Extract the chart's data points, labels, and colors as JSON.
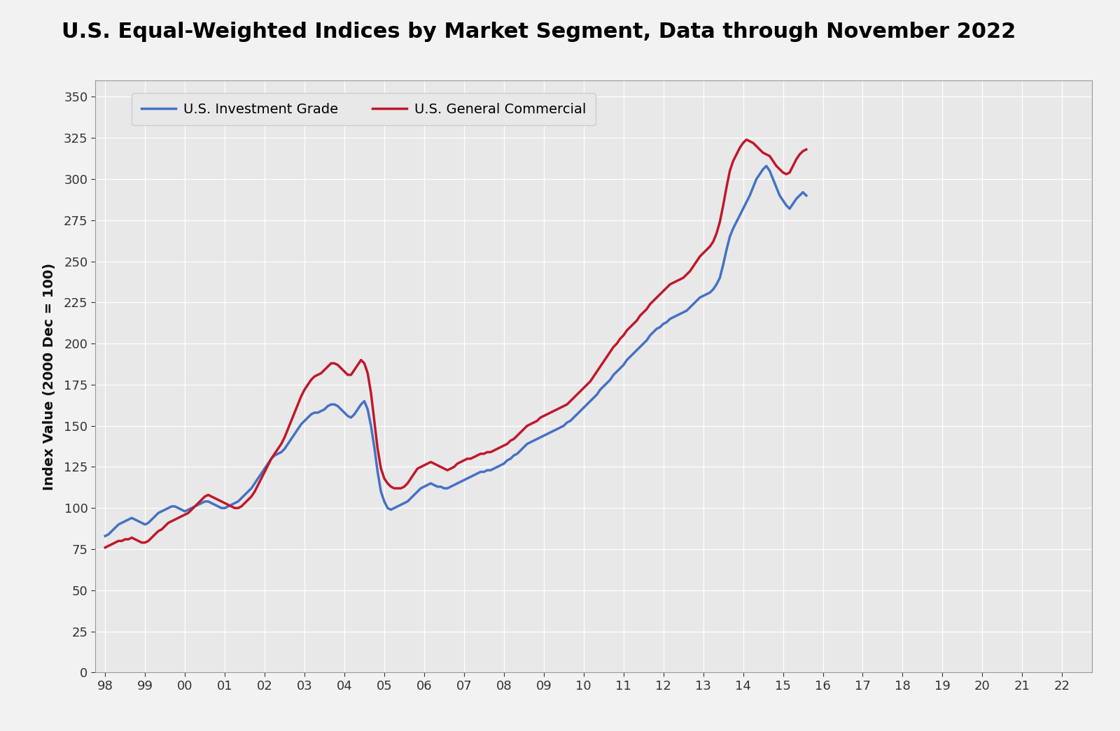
{
  "title": "U.S. Equal-Weighted Indices by Market Segment, Data through November 2022",
  "ylabel": "Index Value (2000 Dec = 100)",
  "ylim": [
    0,
    360
  ],
  "yticks": [
    0,
    25,
    50,
    75,
    100,
    125,
    150,
    175,
    200,
    225,
    250,
    275,
    300,
    325,
    350
  ],
  "xtick_labels": [
    "98",
    "99",
    "00",
    "01",
    "02",
    "03",
    "04",
    "05",
    "06",
    "07",
    "08",
    "09",
    "10",
    "11",
    "12",
    "13",
    "14",
    "15",
    "16",
    "17",
    "18",
    "19",
    "20",
    "21",
    "22"
  ],
  "line_ig_color": "#4472C4",
  "line_gc_color": "#C0182A",
  "line_width": 2.5,
  "legend_ig": "U.S. Investment Grade",
  "legend_gc": "U.S. General Commercial",
  "fig_bg_color": "#F2F2F2",
  "plot_bg_color": "#E8E8E8",
  "title_fontsize": 22,
  "axis_fontsize": 14,
  "tick_fontsize": 13,
  "legend_fontsize": 14,
  "ig_values": [
    83,
    84,
    86,
    88,
    90,
    91,
    92,
    93,
    94,
    93,
    92,
    91,
    90,
    91,
    93,
    95,
    97,
    98,
    99,
    100,
    101,
    101,
    100,
    99,
    98,
    99,
    100,
    101,
    102,
    103,
    104,
    104,
    103,
    102,
    101,
    100,
    100,
    101,
    102,
    103,
    104,
    106,
    108,
    110,
    112,
    115,
    118,
    121,
    124,
    127,
    130,
    132,
    133,
    134,
    136,
    139,
    142,
    145,
    148,
    151,
    153,
    155,
    157,
    158,
    158,
    159,
    160,
    162,
    163,
    163,
    162,
    160,
    158,
    156,
    155,
    157,
    160,
    163,
    165,
    160,
    150,
    137,
    122,
    110,
    104,
    100,
    99,
    100,
    101,
    102,
    103,
    104,
    106,
    108,
    110,
    112,
    113,
    114,
    115,
    114,
    113,
    113,
    112,
    112,
    113,
    114,
    115,
    116,
    117,
    118,
    119,
    120,
    121,
    122,
    122,
    123,
    123,
    124,
    125,
    126,
    127,
    129,
    130,
    132,
    133,
    135,
    137,
    139,
    140,
    141,
    142,
    143,
    144,
    145,
    146,
    147,
    148,
    149,
    150,
    152,
    153,
    155,
    157,
    159,
    161,
    163,
    165,
    167,
    169,
    172,
    174,
    176,
    178,
    181,
    183,
    185,
    187,
    190,
    192,
    194,
    196,
    198,
    200,
    202,
    205,
    207,
    209,
    210,
    212,
    213,
    215,
    216,
    217,
    218,
    219,
    220,
    222,
    224,
    226,
    228,
    229,
    230,
    231,
    233,
    236,
    240,
    248,
    257,
    265,
    270,
    274,
    278,
    282,
    286,
    290,
    295,
    300,
    303,
    306,
    308,
    305,
    300,
    295,
    290,
    287,
    284,
    282,
    285,
    288,
    290,
    292,
    290
  ],
  "gc_values": [
    76,
    77,
    78,
    79,
    80,
    80,
    81,
    81,
    82,
    81,
    80,
    79,
    79,
    80,
    82,
    84,
    86,
    87,
    89,
    91,
    92,
    93,
    94,
    95,
    96,
    97,
    99,
    101,
    103,
    105,
    107,
    108,
    107,
    106,
    105,
    104,
    103,
    102,
    101,
    100,
    100,
    101,
    103,
    105,
    107,
    110,
    114,
    118,
    122,
    126,
    130,
    133,
    136,
    139,
    143,
    148,
    153,
    158,
    163,
    168,
    172,
    175,
    178,
    180,
    181,
    182,
    184,
    186,
    188,
    188,
    187,
    185,
    183,
    181,
    181,
    184,
    187,
    190,
    188,
    182,
    170,
    153,
    136,
    124,
    118,
    115,
    113,
    112,
    112,
    112,
    113,
    115,
    118,
    121,
    124,
    125,
    126,
    127,
    128,
    127,
    126,
    125,
    124,
    123,
    124,
    125,
    127,
    128,
    129,
    130,
    130,
    131,
    132,
    133,
    133,
    134,
    134,
    135,
    136,
    137,
    138,
    139,
    141,
    142,
    144,
    146,
    148,
    150,
    151,
    152,
    153,
    155,
    156,
    157,
    158,
    159,
    160,
    161,
    162,
    163,
    165,
    167,
    169,
    171,
    173,
    175,
    177,
    180,
    183,
    186,
    189,
    192,
    195,
    198,
    200,
    203,
    205,
    208,
    210,
    212,
    214,
    217,
    219,
    221,
    224,
    226,
    228,
    230,
    232,
    234,
    236,
    237,
    238,
    239,
    240,
    242,
    244,
    247,
    250,
    253,
    255,
    257,
    259,
    262,
    267,
    274,
    284,
    295,
    305,
    311,
    315,
    319,
    322,
    324,
    323,
    322,
    320,
    318,
    316,
    315,
    314,
    311,
    308,
    306,
    304,
    303,
    304,
    308,
    312,
    315,
    317,
    318
  ]
}
